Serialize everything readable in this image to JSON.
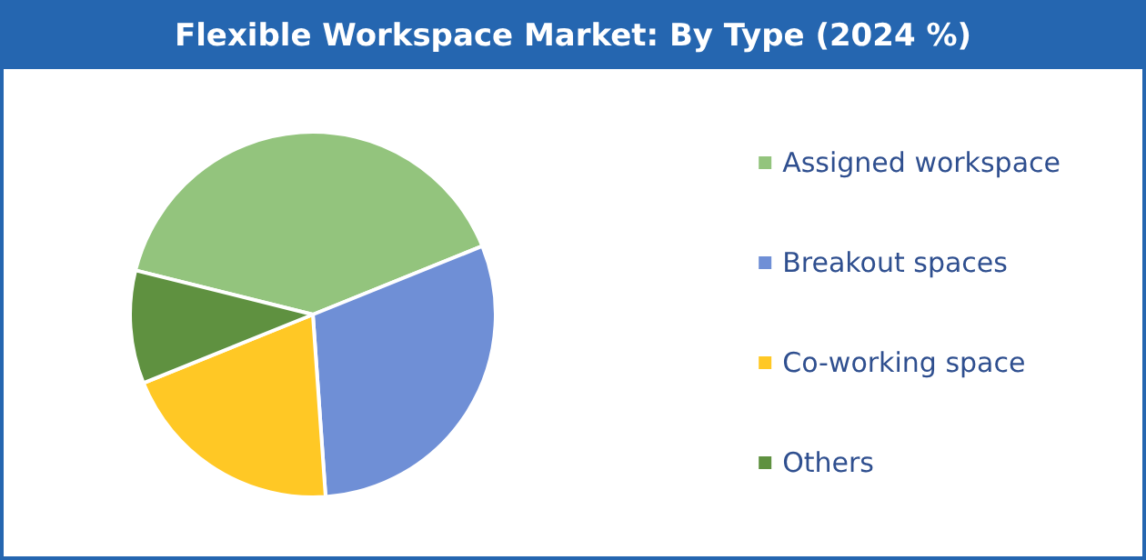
{
  "chart_data": {
    "type": "pie",
    "title": "Flexible Workspace Market: By Type (2024 %)",
    "categories": [
      "Assigned workspace",
      "Breakout spaces",
      "Co-working space",
      "Others"
    ],
    "values": [
      40,
      30,
      20,
      10
    ],
    "colors": [
      "#93c47d",
      "#6f8fd6",
      "#ffc825",
      "#5f9140"
    ],
    "legend": "right"
  }
}
